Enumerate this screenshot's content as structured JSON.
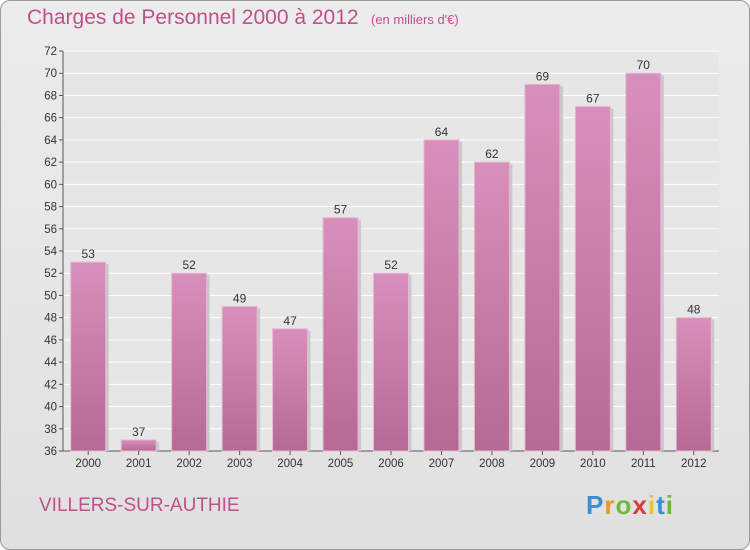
{
  "header": {
    "title": "Charges de Personnel 2000 à 2012",
    "subtitle": "(en milliers d'€)"
  },
  "footer": {
    "town": "VILLERS-SUR-AUTHIE",
    "logo": {
      "text": "Proxiti",
      "letters": [
        {
          "ch": "P",
          "color": "#3a8fd0"
        },
        {
          "ch": "r",
          "color": "#e8962c"
        },
        {
          "ch": "o",
          "color": "#6fb83c"
        },
        {
          "ch": "x",
          "color": "#d83c3c"
        },
        {
          "ch": "i",
          "color": "#e8c23c"
        },
        {
          "ch": "t",
          "color": "#3a8fd0"
        },
        {
          "ch": "i",
          "color": "#6fb83c"
        }
      ]
    }
  },
  "colors": {
    "bar": "#d98fbb",
    "bar_dark": "#b56a95",
    "accent": "#c0508a"
  },
  "chart_data": {
    "type": "bar",
    "title": "Charges de Personnel 2000 à 2012",
    "subtitle": "(en milliers d'€)",
    "categories": [
      "2000",
      "2001",
      "2002",
      "2003",
      "2004",
      "2005",
      "2006",
      "2007",
      "2008",
      "2009",
      "2010",
      "2011",
      "2012"
    ],
    "values": [
      53,
      37,
      52,
      49,
      47,
      57,
      52,
      64,
      62,
      69,
      67,
      70,
      48
    ],
    "ylim": [
      36,
      72
    ],
    "yticks": [
      36,
      38,
      40,
      42,
      44,
      46,
      48,
      50,
      52,
      54,
      56,
      58,
      60,
      62,
      64,
      66,
      68,
      70,
      72
    ],
    "grid": true,
    "legend": "none"
  }
}
